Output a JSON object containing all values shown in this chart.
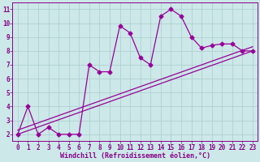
{
  "line1_x": [
    0,
    1,
    2,
    3,
    4,
    5,
    6,
    7,
    8,
    9,
    10,
    11,
    12,
    13,
    14,
    15,
    16,
    17,
    18,
    19,
    20,
    21,
    22,
    23
  ],
  "line1_y": [
    2.0,
    4.0,
    2.0,
    2.5,
    2.0,
    2.0,
    2.0,
    7.0,
    6.5,
    6.5,
    9.8,
    9.3,
    7.5,
    7.0,
    10.5,
    11.0,
    10.5,
    9.0,
    8.2,
    8.4,
    8.5,
    8.5,
    8.0,
    8.0
  ],
  "line2_x": [
    0,
    23
  ],
  "line2_y": [
    2.0,
    8.0
  ],
  "line3_x": [
    0,
    23
  ],
  "line3_y": [
    2.3,
    8.3
  ],
  "line_color": "#990099",
  "bg_color": "#cce8e8",
  "grid_color": "#aacccc",
  "xlabel": "Windchill (Refroidissement éolien,°C)",
  "xlim": [
    -0.5,
    23.5
  ],
  "ylim": [
    1.5,
    11.5
  ],
  "yticks": [
    2,
    3,
    4,
    5,
    6,
    7,
    8,
    9,
    10,
    11
  ],
  "xticks": [
    0,
    1,
    2,
    3,
    4,
    5,
    6,
    7,
    8,
    9,
    10,
    11,
    12,
    13,
    14,
    15,
    16,
    17,
    18,
    19,
    20,
    21,
    22,
    23
  ],
  "marker": "D",
  "markersize": 2.5,
  "linewidth": 0.9,
  "tick_fontsize": 5.5,
  "xlabel_fontsize": 6.0,
  "tick_color": "#880088",
  "spine_color": "#880088"
}
